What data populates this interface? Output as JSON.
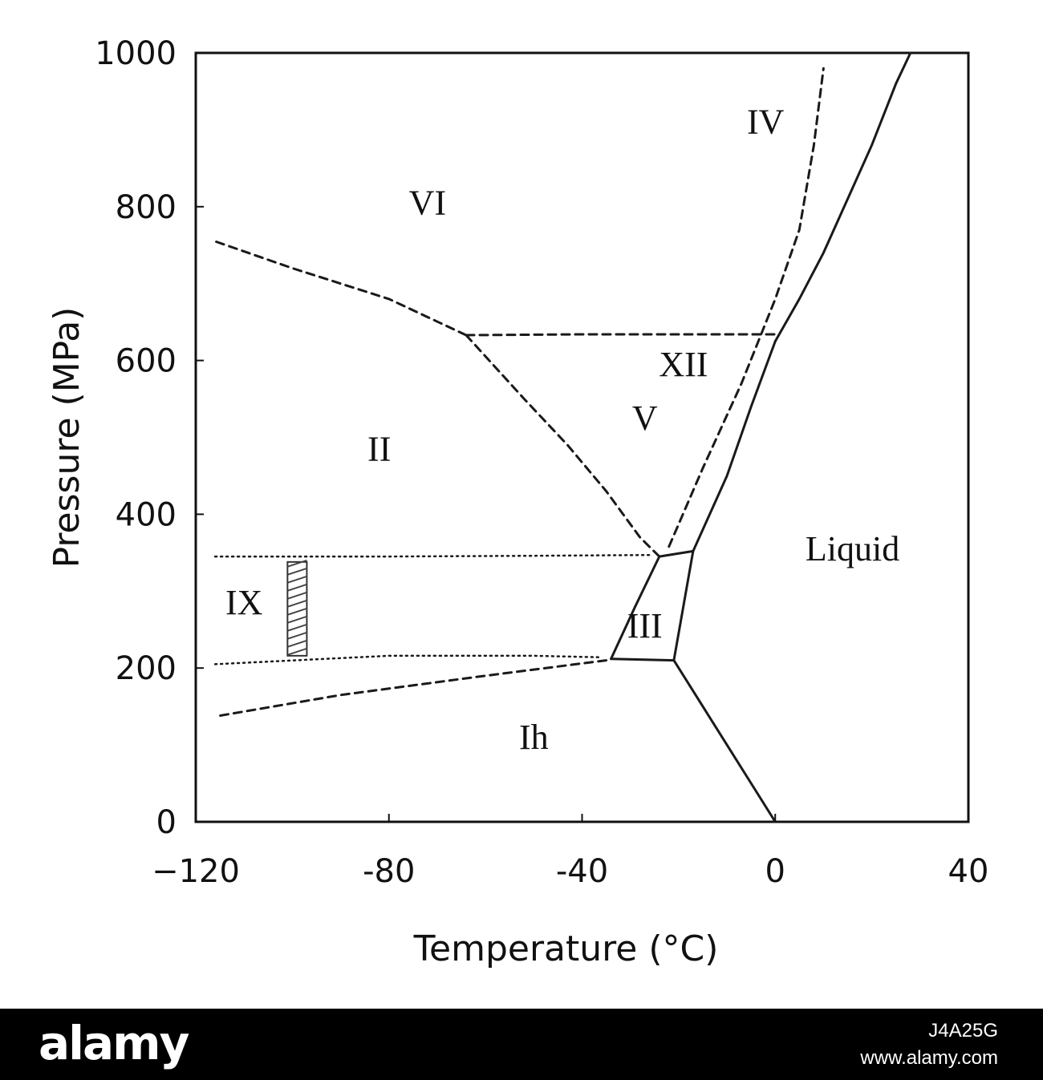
{
  "chart_data": {
    "type": "line",
    "title": "",
    "xlabel": "Temperature (°C)",
    "ylabel": "Pressure (MPa)",
    "xlim": [
      -120,
      40
    ],
    "ylim": [
      0,
      1000
    ],
    "x_ticks": [
      -120,
      -80,
      -40,
      0,
      40
    ],
    "x_tick_labels": [
      "−120",
      "-80",
      "-40",
      "0",
      "40"
    ],
    "y_ticks": [
      0,
      200,
      400,
      600,
      800,
      1000
    ],
    "y_tick_labels": [
      "0",
      "200",
      "400",
      "600",
      "800",
      "1000"
    ],
    "grid": false,
    "series": [
      {
        "style": "solid",
        "points": [
          [
            0,
            0
          ],
          [
            -5,
            50
          ],
          [
            -10,
            100
          ],
          [
            -15,
            150
          ],
          [
            -21,
            210
          ]
        ]
      },
      {
        "style": "solid",
        "points": [
          [
            -21,
            210
          ],
          [
            -17,
            352
          ]
        ]
      },
      {
        "style": "solid",
        "points": [
          [
            -34,
            212
          ],
          [
            -21,
            210
          ]
        ]
      },
      {
        "style": "solid",
        "points": [
          [
            -34,
            212
          ],
          [
            -29,
            280
          ],
          [
            -24,
            345
          ]
        ]
      },
      {
        "style": "solid",
        "points": [
          [
            -24,
            345
          ],
          [
            -17,
            352
          ]
        ]
      },
      {
        "style": "solid",
        "points": [
          [
            -17,
            352
          ],
          [
            -10,
            450
          ],
          [
            -5,
            540
          ],
          [
            0,
            625
          ]
        ]
      },
      {
        "style": "solid",
        "points": [
          [
            0,
            625
          ],
          [
            5,
            680
          ],
          [
            10,
            740
          ],
          [
            15,
            810
          ],
          [
            20,
            880
          ],
          [
            25,
            960
          ],
          [
            28,
            1000
          ]
        ]
      },
      {
        "style": "dashed",
        "points": [
          [
            -24,
            345
          ],
          [
            -28,
            370
          ],
          [
            -35,
            430
          ],
          [
            -43,
            490
          ],
          [
            -52,
            550
          ],
          [
            -64,
            633
          ]
        ]
      },
      {
        "style": "dashed",
        "points": [
          [
            -64,
            633
          ],
          [
            -40,
            634
          ],
          [
            -20,
            634
          ],
          [
            0,
            634
          ]
        ]
      },
      {
        "style": "dashed",
        "points": [
          [
            -64,
            633
          ],
          [
            -80,
            680
          ],
          [
            -100,
            720
          ],
          [
            -116,
            755
          ]
        ]
      },
      {
        "style": "dashed",
        "points": [
          [
            -35,
            210
          ],
          [
            -60,
            190
          ],
          [
            -90,
            165
          ],
          [
            -116,
            137
          ]
        ]
      },
      {
        "style": "dashed",
        "points": [
          [
            -22,
            358
          ],
          [
            -15,
            460
          ],
          [
            -7,
            570
          ],
          [
            0,
            680
          ],
          [
            5,
            770
          ],
          [
            8,
            880
          ],
          [
            10,
            980
          ]
        ]
      },
      {
        "style": "dotted",
        "points": [
          [
            -116,
            345
          ],
          [
            -80,
            345
          ],
          [
            -50,
            346
          ],
          [
            -26,
            347
          ]
        ]
      },
      {
        "style": "dotted",
        "points": [
          [
            -116,
            205
          ],
          [
            -80,
            216
          ],
          [
            -50,
            216
          ],
          [
            -36,
            214
          ]
        ]
      }
    ],
    "hatched_band": {
      "x": [
        -101,
        -97
      ],
      "y": [
        216,
        338
      ]
    },
    "annotations": [
      {
        "text": "VI",
        "x": -72,
        "y": 790
      },
      {
        "text": "IV",
        "x": -2,
        "y": 895
      },
      {
        "text": "XII",
        "x": -19,
        "y": 580
      },
      {
        "text": "V",
        "x": -27,
        "y": 510
      },
      {
        "text": "II",
        "x": -82,
        "y": 470
      },
      {
        "text": "Liquid",
        "x": 16,
        "y": 340
      },
      {
        "text": "IX",
        "x": -110,
        "y": 270
      },
      {
        "text": "III",
        "x": -27,
        "y": 240
      },
      {
        "text": "Ih",
        "x": -50,
        "y": 95
      }
    ]
  },
  "footer": {
    "brand": "alamy",
    "stock_id": "J4A25G",
    "url": "www.alamy.com",
    "background": "#000000",
    "text_color": "#ffffff"
  }
}
